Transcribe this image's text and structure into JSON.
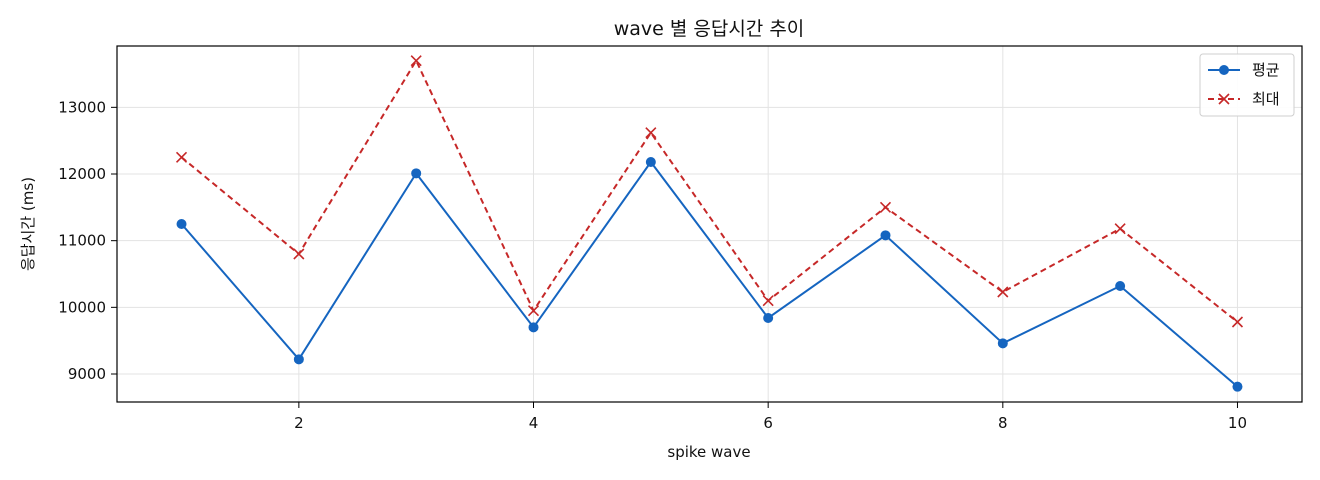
{
  "chart_data": {
    "type": "line",
    "title": "wave 별 응답시간 추이",
    "xlabel": "spike wave",
    "ylabel": "응답시간 (ms)",
    "x": [
      1,
      2,
      3,
      4,
      5,
      6,
      7,
      8,
      9,
      10
    ],
    "xticks": [
      2,
      4,
      6,
      8,
      10
    ],
    "yticks": [
      9000,
      10000,
      11000,
      12000,
      13000
    ],
    "xlim": [
      0.45,
      10.55
    ],
    "ylim": [
      8580,
      13920
    ],
    "grid": true,
    "legend_position": "top-right",
    "series": [
      {
        "name": "평균",
        "color": "#1565c0",
        "line_style": "solid",
        "marker": "circle",
        "values": [
          11250,
          9220,
          12010,
          9700,
          12180,
          9840,
          11080,
          9460,
          10320,
          8810
        ]
      },
      {
        "name": "최대",
        "color": "#c62828",
        "line_style": "dashed",
        "marker": "x",
        "values": [
          12250,
          10800,
          13700,
          9950,
          12620,
          10100,
          11500,
          10230,
          11180,
          9780
        ]
      }
    ]
  }
}
